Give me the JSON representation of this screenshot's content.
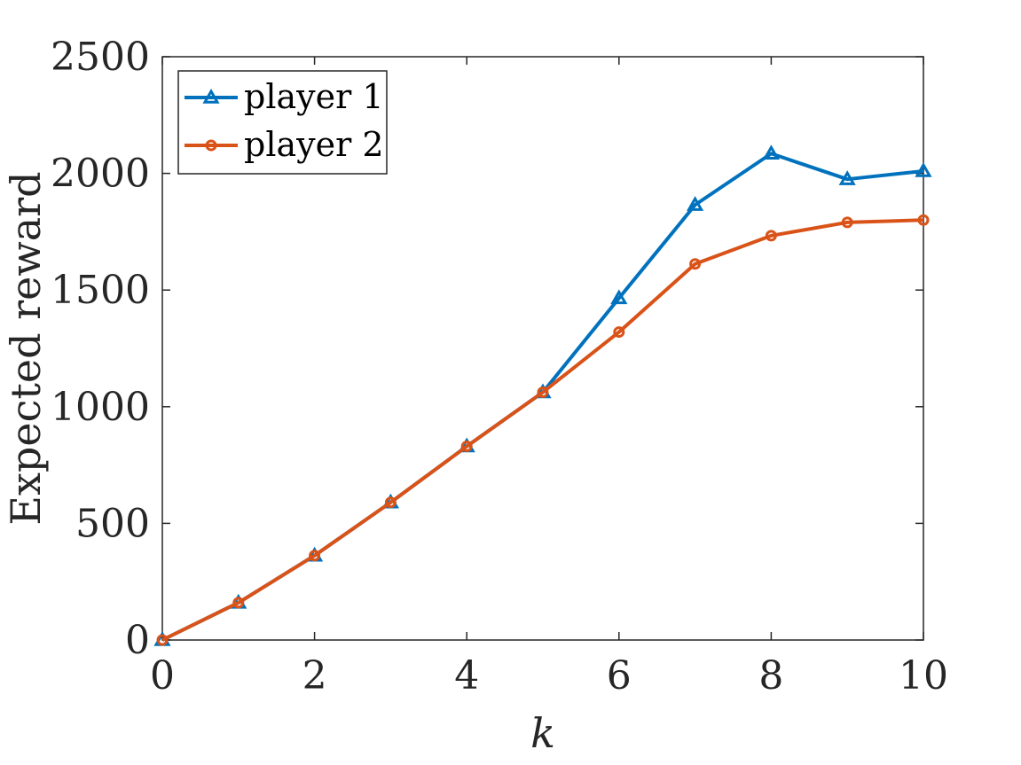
{
  "chart_data": {
    "type": "line",
    "title": "",
    "xlabel": "k",
    "ylabel": "Expected reward",
    "x": [
      0,
      1,
      2,
      3,
      4,
      5,
      6,
      7,
      8,
      9,
      10
    ],
    "xlim": [
      0,
      10
    ],
    "ylim": [
      0,
      2500
    ],
    "xticks": [
      0,
      2,
      4,
      6,
      8,
      10
    ],
    "yticks": [
      0,
      500,
      1000,
      1500,
      2000,
      2500
    ],
    "grid": false,
    "legend_position": "top-left",
    "series": [
      {
        "name": "player 1",
        "color": "#0072BD",
        "marker": "triangle",
        "values": [
          0,
          160,
          362,
          590,
          830,
          1062,
          1465,
          1865,
          2085,
          1975,
          2010
        ]
      },
      {
        "name": "player 2",
        "color": "#D95319",
        "marker": "circle",
        "values": [
          0,
          160,
          362,
          590,
          830,
          1062,
          1320,
          1612,
          1733,
          1790,
          1800
        ]
      }
    ]
  }
}
